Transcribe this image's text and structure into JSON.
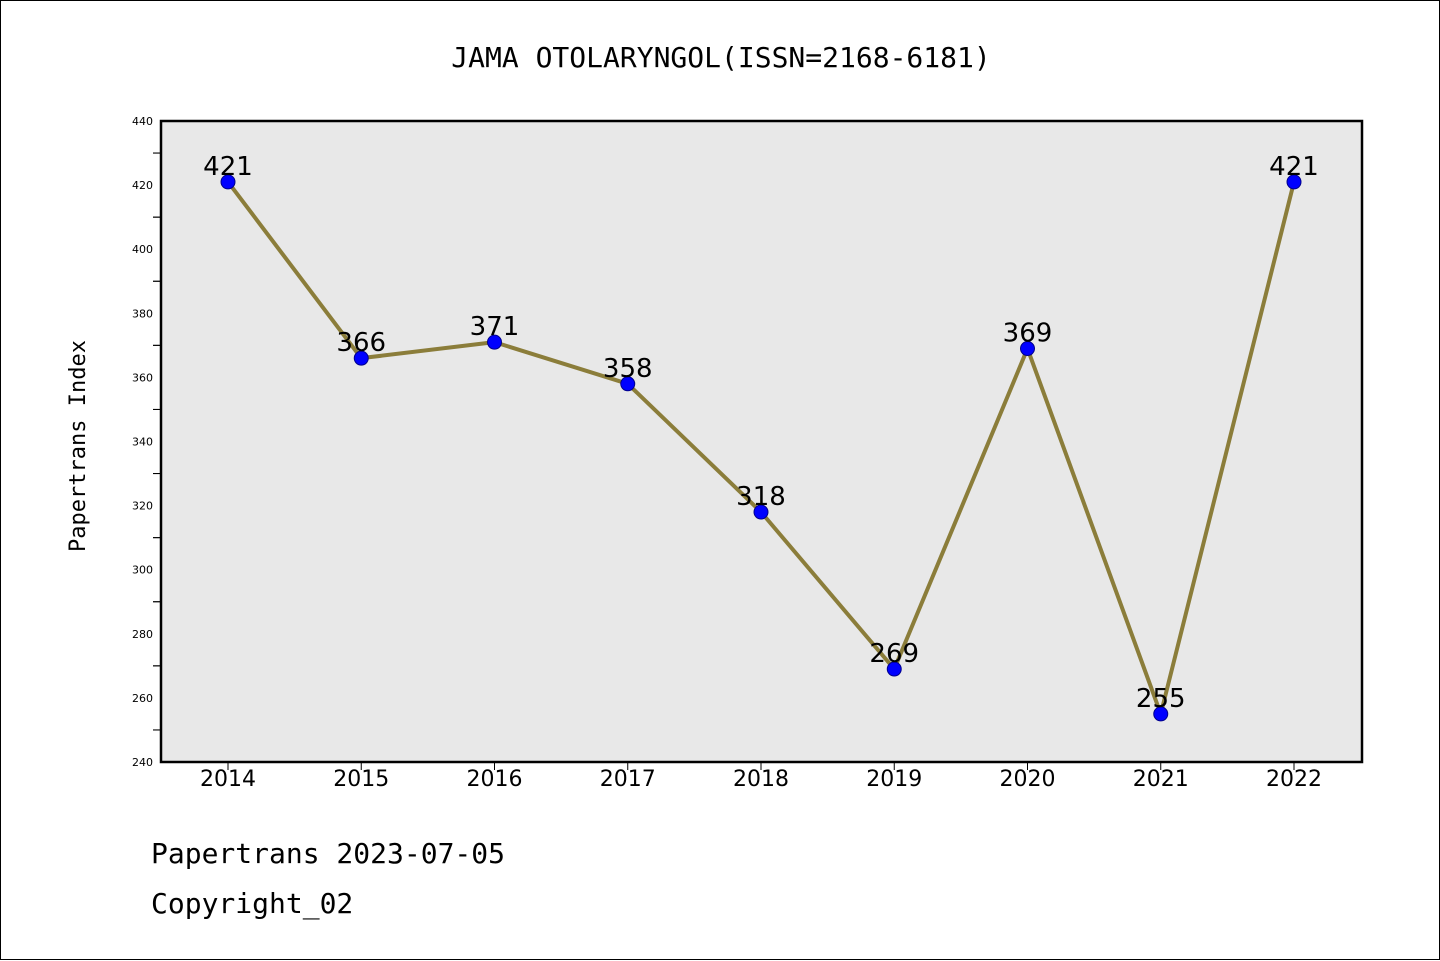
{
  "chart_data": {
    "type": "line",
    "title": "JAMA OTOLARYNGOL(ISSN=2168-6181)",
    "xlabel": "",
    "ylabel": "Papertrans Index",
    "categories": [
      "2014",
      "2015",
      "2016",
      "2017",
      "2018",
      "2019",
      "2020",
      "2021",
      "2022"
    ],
    "values": [
      421,
      366,
      371,
      358,
      318,
      269,
      369,
      255,
      421
    ],
    "data_labels": [
      "421",
      "366",
      "371",
      "358",
      "318",
      "269",
      "369",
      "255",
      "421"
    ],
    "ylim": [
      240,
      440
    ],
    "yticks": [
      240,
      260,
      280,
      300,
      320,
      340,
      360,
      380,
      400,
      420,
      440
    ],
    "ytick_labels": [
      "240",
      "260",
      "280",
      "300",
      "320",
      "340",
      "360",
      "380",
      "400",
      "420",
      "440"
    ],
    "grid": false,
    "legend": "none",
    "line_color": "#8B7D3A",
    "marker_color": "#0000FF",
    "plot_background": "#E8E8E8"
  },
  "footer": {
    "line1": "Papertrans 2023-07-05",
    "line2": "Copyright_02"
  }
}
